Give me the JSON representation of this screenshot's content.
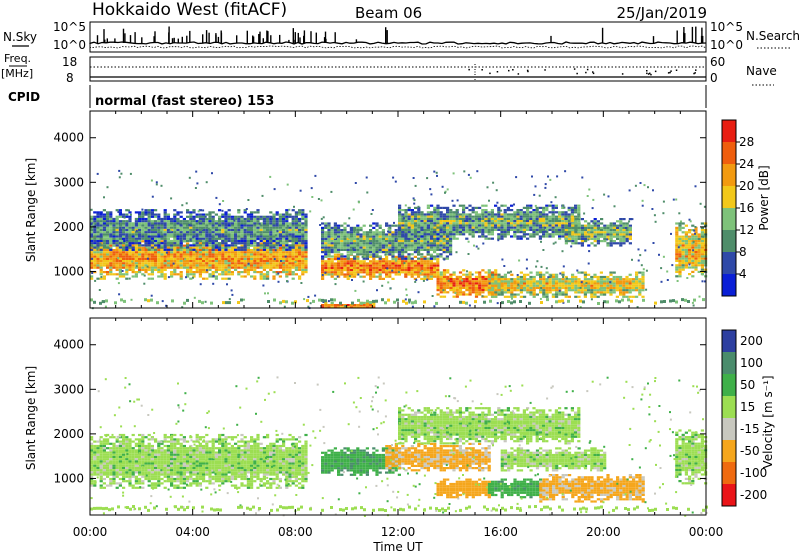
{
  "header": {
    "station": "Hokkaido West (fitACF)",
    "beam": "Beam 06",
    "date": "25/Jan/2019"
  },
  "top_panels": {
    "nsky_label": "N.Sky",
    "nsearch_label": "N.Search",
    "freq_label_line1": "Freq.",
    "freq_label_line2": "[MHz]",
    "nave_label": "Nave",
    "cpid_label": "CPID",
    "noise_ticks_left": [
      "10^5",
      "10^0"
    ],
    "noise_ticks_right": [
      "10^5",
      "10^0"
    ],
    "freq_ticks_left": [
      "18",
      "8"
    ],
    "nave_ticks_right": [
      "60",
      "0"
    ],
    "cpid_text": "normal (fast stereo) 153"
  },
  "colors": {
    "power_scale": [
      "#0a1fd6",
      "#2f49a8",
      "#4f8d6a",
      "#7ec27a",
      "#f2c81a",
      "#f29a10",
      "#ef5e0d",
      "#e81e12"
    ],
    "velocity_scale": [
      "#ea1418",
      "#ef6a10",
      "#f5a61c",
      "#c8c8bf",
      "#9cde52",
      "#3fb049",
      "#4a8c6c",
      "#2d3fa0"
    ]
  },
  "chart_data": [
    {
      "type": "heatmap",
      "name": "power",
      "ylabel": "Slant Range [km]",
      "ylim": [
        180,
        4600
      ],
      "xlim_hours": [
        0,
        24
      ],
      "yticks": [
        "1000",
        "2000",
        "3000",
        "4000"
      ],
      "xticks": [
        "00:00",
        "04:00",
        "08:00",
        "12:00",
        "16:00",
        "20:00",
        "00:00"
      ],
      "colorbar_title": "Power [dB]",
      "colorbar_ticks": [
        "28",
        "24",
        "20",
        "16",
        "12",
        "8",
        "4"
      ],
      "colorbar_range": [
        0,
        32
      ],
      "regions": [
        {
          "t0": 0.0,
          "t1": 8.4,
          "r0": 850,
          "r1": 1800,
          "level": 22
        },
        {
          "t0": 0.0,
          "t1": 8.4,
          "r0": 1500,
          "r1": 2400,
          "level": 11
        },
        {
          "t0": 9.0,
          "t1": 13.5,
          "r0": 850,
          "r1": 1400,
          "level": 24
        },
        {
          "t0": 9.0,
          "t1": 14.0,
          "r0": 1300,
          "r1": 2100,
          "level": 13
        },
        {
          "t0": 12.0,
          "t1": 19.0,
          "r0": 1750,
          "r1": 2500,
          "level": 13
        },
        {
          "t0": 13.5,
          "t1": 16.0,
          "r0": 450,
          "r1": 1050,
          "level": 25
        },
        {
          "t0": 15.5,
          "t1": 21.5,
          "r0": 450,
          "r1": 1000,
          "level": 19
        },
        {
          "t0": 18.5,
          "t1": 21.0,
          "r0": 1600,
          "r1": 2200,
          "level": 14
        },
        {
          "t0": 22.8,
          "t1": 24.0,
          "r0": 900,
          "r1": 2100,
          "level": 20
        },
        {
          "t0": 9.0,
          "t1": 11.0,
          "r0": 180,
          "r1": 320,
          "level": 25
        }
      ]
    },
    {
      "type": "heatmap",
      "name": "velocity",
      "ylabel": "Slant Range [km]",
      "ylim": [
        180,
        4600
      ],
      "xlim_hours": [
        0,
        24
      ],
      "yticks": [
        "1000",
        "2000",
        "3000",
        "4000"
      ],
      "xticks": [
        "00:00",
        "04:00",
        "08:00",
        "12:00",
        "16:00",
        "20:00",
        "00:00"
      ],
      "xlabel": "Time UT",
      "colorbar_title": "Velocity [m s⁻¹]",
      "colorbar_ticks": [
        "200",
        "100",
        "50",
        "15",
        "-15",
        "-50",
        "-100",
        "-200"
      ],
      "regions": [
        {
          "t0": 0.0,
          "t1": 8.4,
          "r0": 800,
          "r1": 2000,
          "value": 0
        },
        {
          "t0": 9.0,
          "t1": 12.0,
          "r0": 1100,
          "r1": 1700,
          "value": 40
        },
        {
          "t0": 11.5,
          "t1": 15.5,
          "r0": 1200,
          "r1": 1800,
          "value": -60
        },
        {
          "t0": 12.0,
          "t1": 19.0,
          "r0": 1800,
          "r1": 2600,
          "value": 0
        },
        {
          "t0": 13.5,
          "t1": 15.5,
          "r0": 600,
          "r1": 1000,
          "value": -70
        },
        {
          "t0": 15.5,
          "t1": 17.5,
          "r0": 600,
          "r1": 1000,
          "value": 35
        },
        {
          "t0": 17.5,
          "t1": 21.5,
          "r0": 500,
          "r1": 1100,
          "value": -60
        },
        {
          "t0": 16.0,
          "t1": 20.0,
          "r0": 1200,
          "r1": 1700,
          "value": 0
        },
        {
          "t0": 22.8,
          "t1": 24.0,
          "r0": 900,
          "r1": 2100,
          "value": 0
        }
      ]
    }
  ]
}
